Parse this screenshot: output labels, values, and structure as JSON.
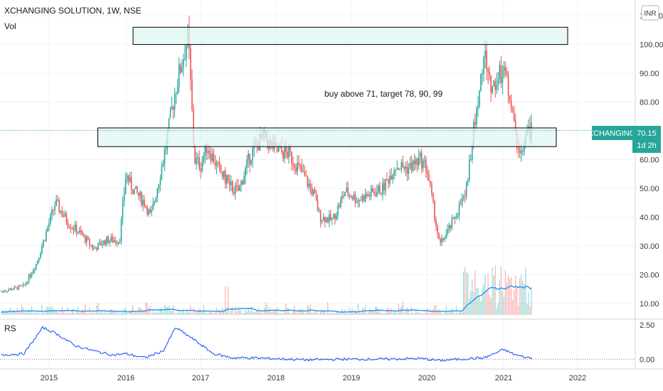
{
  "header": {
    "symbol_line": "XCHANGING SOLUTION, 1W, NSE",
    "volume_label": "Vol",
    "currency": "INR"
  },
  "price_tag": {
    "ticker": "XCHANGING",
    "price": "70.15",
    "countdown": "1d 2h"
  },
  "annotation": "buy above 71, target 78, 90, 99",
  "rs_label": "RS",
  "colors": {
    "up": "#26a69a",
    "down": "#ef5350",
    "zone_fill": "#e0f5f4",
    "zone_border": "#000000",
    "vol_ma": "#2196f3",
    "rs_line": "#2962ff",
    "tag_bg": "#26a69a",
    "grid": "#f0f3fa"
  },
  "chart_data": [
    {
      "type": "candlestick",
      "title": "XCHANGING SOLUTION, 1W, NSE",
      "x_ticks": [
        "2015",
        "2016",
        "2017",
        "2018",
        "2019",
        "2020",
        "2021",
        "2022"
      ],
      "y_ticks": [
        "10.00",
        "20.00",
        "30.00",
        "40.00",
        "50.00",
        "60.00",
        "70.00",
        "80.00",
        "90.00",
        "100.00",
        "110.00"
      ],
      "ylim": [
        5,
        113
      ],
      "y_scale": "linear",
      "grid": true,
      "last_price": 70.15,
      "zones": [
        {
          "y_low": 100,
          "y_high": 106,
          "x_start": "2016-W06",
          "x_end": "2021-W46"
        },
        {
          "y_low": 64.5,
          "y_high": 71,
          "x_start": "2015-W34",
          "x_end": "2021-W38"
        }
      ],
      "price_path_points": [
        [
          "2014-05",
          14
        ],
        [
          "2014-09",
          16
        ],
        [
          "2014-11",
          24
        ],
        [
          "2015-02",
          45
        ],
        [
          "2015-04",
          38
        ],
        [
          "2015-06",
          34
        ],
        [
          "2015-08",
          29
        ],
        [
          "2015-10",
          32
        ],
        [
          "2015-12",
          32
        ],
        [
          "2016-01",
          55
        ],
        [
          "2016-02",
          50
        ],
        [
          "2016-04",
          45
        ],
        [
          "2016-05",
          40
        ],
        [
          "2016-07",
          60
        ],
        [
          "2016-09",
          85
        ],
        [
          "2016-11",
          103
        ],
        [
          "2016-12",
          60
        ],
        [
          "2017-01",
          58
        ],
        [
          "2017-02",
          65
        ],
        [
          "2017-04",
          56
        ],
        [
          "2017-06",
          50
        ],
        [
          "2017-07",
          49
        ],
        [
          "2017-09",
          62
        ],
        [
          "2017-11",
          68
        ],
        [
          "2018-01",
          63
        ],
        [
          "2018-03",
          62
        ],
        [
          "2018-05",
          56
        ],
        [
          "2018-07",
          48
        ],
        [
          "2018-08",
          40
        ],
        [
          "2018-10",
          39
        ],
        [
          "2018-12",
          49
        ],
        [
          "2019-02",
          46
        ],
        [
          "2019-04",
          48
        ],
        [
          "2019-06",
          50
        ],
        [
          "2019-08",
          58
        ],
        [
          "2019-10",
          57
        ],
        [
          "2019-12",
          60
        ],
        [
          "2020-01",
          57
        ],
        [
          "2020-03",
          30
        ],
        [
          "2020-05",
          38
        ],
        [
          "2020-07",
          48
        ],
        [
          "2020-08",
          65
        ],
        [
          "2020-10",
          97
        ],
        [
          "2020-11",
          85
        ],
        [
          "2020-12",
          88
        ],
        [
          "2021-01",
          92
        ],
        [
          "2021-02",
          82
        ],
        [
          "2021-03",
          67
        ],
        [
          "2021-04",
          62
        ],
        [
          "2021-05",
          70
        ]
      ]
    },
    {
      "type": "bar",
      "name": "Vol",
      "note": "weekly volume bars, shown relative (no values printed)",
      "ma_series": "volume moving average"
    },
    {
      "type": "line",
      "name": "RS",
      "y_ticks": [
        "2.50",
        "0.00"
      ],
      "ylim": [
        -0.4,
        2.8
      ],
      "points": [
        [
          "2014-05",
          0.3
        ],
        [
          "2014-09",
          0.4
        ],
        [
          "2014-12",
          2.3
        ],
        [
          "2015-02",
          1.9
        ],
        [
          "2015-05",
          1.0
        ],
        [
          "2015-08",
          0.6
        ],
        [
          "2015-11",
          0.3
        ],
        [
          "2016-01",
          0.4
        ],
        [
          "2016-04",
          0.1
        ],
        [
          "2016-07",
          0.6
        ],
        [
          "2016-09",
          2.3
        ],
        [
          "2016-12",
          1.4
        ],
        [
          "2017-03",
          0.4
        ],
        [
          "2017-06",
          0.1
        ],
        [
          "2017-09",
          0.1
        ],
        [
          "2017-12",
          0.05
        ],
        [
          "2018-06",
          -0.05
        ],
        [
          "2018-12",
          0.0
        ],
        [
          "2019-06",
          0.0
        ],
        [
          "2019-12",
          0.05
        ],
        [
          "2020-03",
          -0.1
        ],
        [
          "2020-06",
          0.0
        ],
        [
          "2020-10",
          0.1
        ],
        [
          "2021-01",
          0.7
        ],
        [
          "2021-03",
          0.3
        ],
        [
          "2021-05",
          0.1
        ]
      ],
      "zero_line": 0
    }
  ]
}
